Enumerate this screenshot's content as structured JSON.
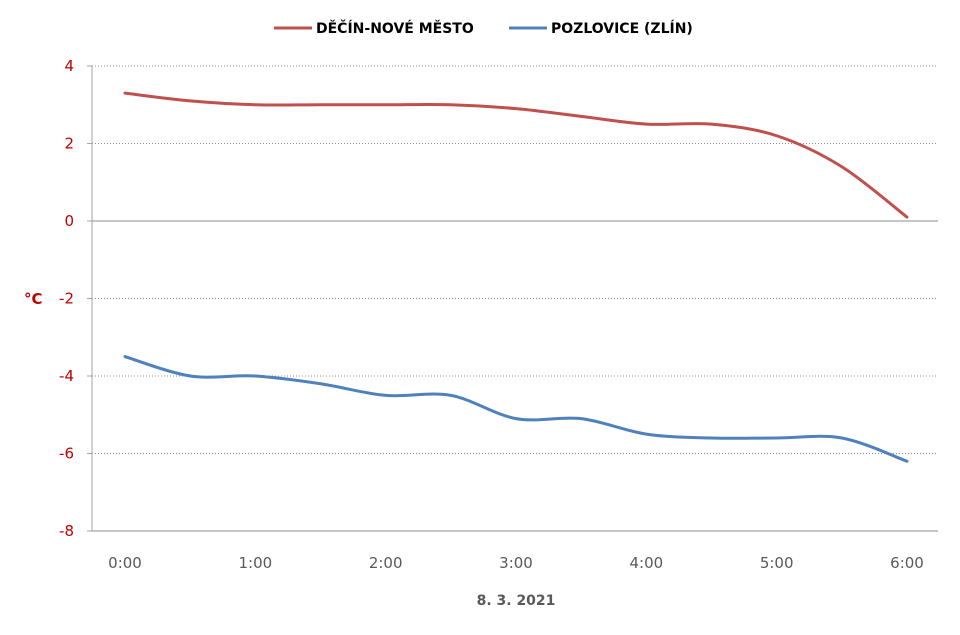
{
  "chart_data": {
    "type": "line",
    "x": [
      "0:00",
      "0:30",
      "1:00",
      "1:30",
      "2:00",
      "2:30",
      "3:00",
      "3:30",
      "4:00",
      "4:30",
      "5:00",
      "5:30",
      "6:00"
    ],
    "x_ticks": [
      "0:00",
      "1:00",
      "2:00",
      "3:00",
      "4:00",
      "5:00",
      "6:00"
    ],
    "xlabel": "8. 3. 2021",
    "ylabel": "°C",
    "ylim": [
      -8,
      4
    ],
    "y_ticks": [
      4,
      2,
      0,
      -2,
      -4,
      -6,
      -8
    ],
    "grid": true,
    "legend_position": "top",
    "series": [
      {
        "name": "DĚČÍN-NOVÉ MĚSTO",
        "color": "#c0504d",
        "values": [
          3.3,
          3.1,
          3.0,
          3.0,
          3.0,
          3.0,
          2.9,
          2.7,
          2.5,
          2.5,
          2.2,
          1.4,
          0.1
        ]
      },
      {
        "name": "POZLOVICE (ZLÍN)",
        "color": "#4f81bd",
        "values": [
          -3.5,
          -4.0,
          -4.0,
          -4.2,
          -4.5,
          -4.5,
          -5.1,
          -5.1,
          -5.5,
          -5.6,
          -5.6,
          -5.6,
          -6.2
        ]
      }
    ]
  }
}
